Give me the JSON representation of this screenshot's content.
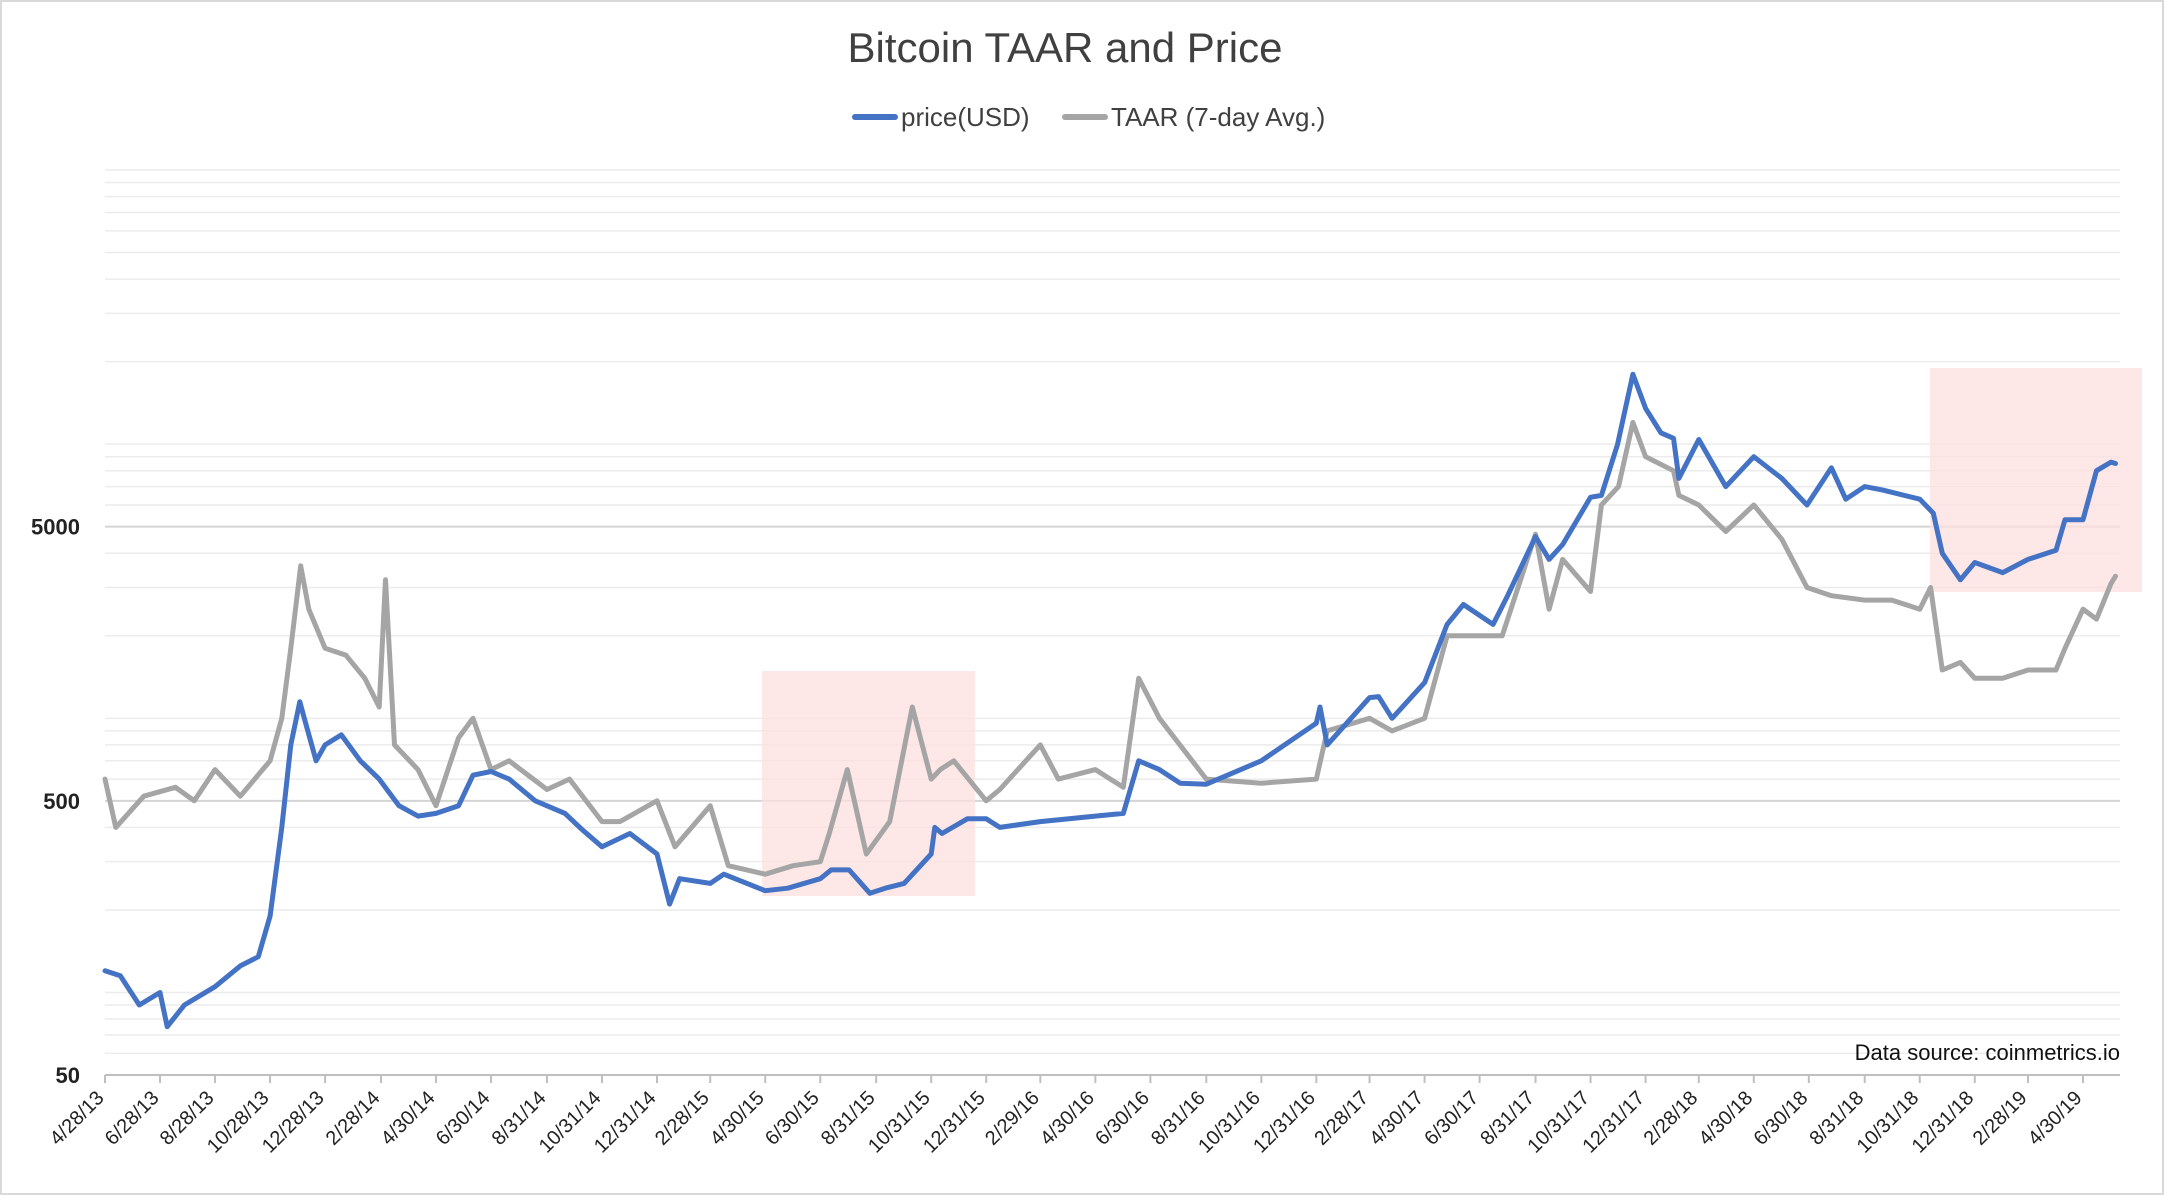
{
  "chart_data": {
    "type": "line",
    "title": "Bitcoin TAAR and Price",
    "annotation": "Data source: coinmetrics.io",
    "yscale": "log",
    "ylim": [
      50,
      100000
    ],
    "y_tick_labels": [
      "50",
      "500",
      "5000"
    ],
    "y_ticks": [
      50,
      500,
      5000
    ],
    "x_tick_labels": [
      "4/28/13",
      "6/28/13",
      "8/28/13",
      "10/28/13",
      "12/28/13",
      "2/28/14",
      "4/30/14",
      "6/30/14",
      "8/31/14",
      "10/31/14",
      "12/31/14",
      "2/28/15",
      "4/30/15",
      "6/30/15",
      "8/31/15",
      "10/31/15",
      "12/31/15",
      "2/29/16",
      "4/30/16",
      "6/30/16",
      "8/31/16",
      "10/31/16",
      "12/31/16",
      "2/28/17",
      "4/30/17",
      "6/30/17",
      "8/31/17",
      "10/31/17",
      "12/31/17",
      "2/28/18",
      "4/30/18",
      "6/30/18",
      "8/31/18",
      "10/31/18",
      "12/31/18",
      "2/28/19",
      "4/30/19"
    ],
    "legend_position": "top-center",
    "grid": true,
    "series": [
      {
        "name": "price(USD)",
        "color": "#4472C4",
        "x": [
          "2013-04-28",
          "2013-05-15",
          "2013-06-05",
          "2013-06-28",
          "2013-07-06",
          "2013-07-25",
          "2013-08-28",
          "2013-09-25",
          "2013-10-15",
          "2013-10-28",
          "2013-11-10",
          "2013-11-20",
          "2013-11-30",
          "2013-12-05",
          "2013-12-18",
          "2013-12-28",
          "2014-01-15",
          "2014-02-05",
          "2014-02-26",
          "2014-03-20",
          "2014-04-10",
          "2014-04-30",
          "2014-05-25",
          "2014-06-10",
          "2014-06-30",
          "2014-07-20",
          "2014-08-18",
          "2014-09-20",
          "2014-10-10",
          "2014-10-31",
          "2014-12-01",
          "2014-12-31",
          "2015-01-14",
          "2015-01-25",
          "2015-02-28",
          "2015-03-15",
          "2015-04-30",
          "2015-05-25",
          "2015-06-30",
          "2015-07-12",
          "2015-08-01",
          "2015-08-24",
          "2015-09-10",
          "2015-10-01",
          "2015-10-31",
          "2015-11-04",
          "2015-11-12",
          "2015-12-10",
          "2015-12-31",
          "2016-01-15",
          "2016-02-29",
          "2016-04-30",
          "2016-05-31",
          "2016-06-17",
          "2016-07-10",
          "2016-08-02",
          "2016-08-31",
          "2016-10-31",
          "2016-12-31",
          "2017-01-04",
          "2017-01-12",
          "2017-02-28",
          "2017-03-10",
          "2017-03-25",
          "2017-04-30",
          "2017-05-25",
          "2017-06-12",
          "2017-07-15",
          "2017-07-31",
          "2017-08-31",
          "2017-09-15",
          "2017-09-30",
          "2017-10-31",
          "2017-11-12",
          "2017-11-30",
          "2017-12-17",
          "2017-12-31",
          "2018-01-17",
          "2018-01-31",
          "2018-02-06",
          "2018-02-28",
          "2018-03-30",
          "2018-04-30",
          "2018-05-31",
          "2018-06-28",
          "2018-07-25",
          "2018-08-10",
          "2018-08-31",
          "2018-09-20",
          "2018-10-31",
          "2018-11-15",
          "2018-11-25",
          "2018-12-15",
          "2018-12-31",
          "2019-01-31",
          "2019-02-28",
          "2019-03-31",
          "2019-04-10",
          "2019-04-30",
          "2019-05-15",
          "2019-05-31",
          "2019-06-05"
        ],
        "values": [
          120,
          115,
          90,
          100,
          75,
          90,
          105,
          125,
          135,
          190,
          400,
          800,
          1150,
          1000,
          700,
          800,
          870,
          700,
          600,
          480,
          440,
          450,
          480,
          620,
          640,
          600,
          500,
          450,
          390,
          340,
          380,
          320,
          210,
          260,
          250,
          270,
          235,
          240,
          260,
          280,
          280,
          230,
          240,
          250,
          320,
          400,
          380,
          430,
          430,
          400,
          420,
          440,
          450,
          700,
          650,
          580,
          575,
          700,
          960,
          1100,
          800,
          1190,
          1200,
          1000,
          1350,
          2200,
          2600,
          2200,
          2800,
          4600,
          3800,
          4300,
          6400,
          6500,
          10000,
          18000,
          13500,
          11000,
          10500,
          7500,
          10400,
          7000,
          9000,
          7500,
          6000,
          8200,
          6300,
          7000,
          6800,
          6300,
          5600,
          4000,
          3200,
          3700,
          3400,
          3800,
          4100,
          5300,
          5300,
          8000,
          8600,
          8500
        ]
      },
      {
        "name": "TAAR (7-day Avg.)",
        "color": "#A5A5A5",
        "x": [
          "2013-04-28",
          "2013-05-10",
          "2013-06-10",
          "2013-07-15",
          "2013-08-05",
          "2013-08-28",
          "2013-09-25",
          "2013-10-28",
          "2013-11-10",
          "2013-11-20",
          "2013-12-01",
          "2013-12-10",
          "2013-12-28",
          "2014-01-20",
          "2014-02-10",
          "2014-02-26",
          "2014-03-05",
          "2014-03-15",
          "2014-04-10",
          "2014-04-30",
          "2014-05-25",
          "2014-06-10",
          "2014-06-30",
          "2014-07-20",
          "2014-08-31",
          "2014-09-25",
          "2014-10-31",
          "2014-11-20",
          "2014-12-31",
          "2015-01-20",
          "2015-02-28",
          "2015-03-20",
          "2015-04-30",
          "2015-05-31",
          "2015-06-30",
          "2015-07-10",
          "2015-07-30",
          "2015-08-20",
          "2015-09-15",
          "2015-10-10",
          "2015-10-31",
          "2015-11-10",
          "2015-11-25",
          "2015-12-31",
          "2016-01-15",
          "2016-02-29",
          "2016-03-20",
          "2016-04-30",
          "2016-05-31",
          "2016-06-17",
          "2016-07-10",
          "2016-08-31",
          "2016-10-31",
          "2016-12-31",
          "2017-01-12",
          "2017-02-28",
          "2017-03-25",
          "2017-04-30",
          "2017-05-25",
          "2017-06-30",
          "2017-07-25",
          "2017-08-31",
          "2017-09-15",
          "2017-09-30",
          "2017-10-31",
          "2017-11-12",
          "2017-12-01",
          "2017-12-17",
          "2017-12-31",
          "2018-01-31",
          "2018-02-06",
          "2018-02-28",
          "2018-03-30",
          "2018-04-30",
          "2018-05-31",
          "2018-06-28",
          "2018-07-25",
          "2018-08-31",
          "2018-09-30",
          "2018-10-31",
          "2018-11-12",
          "2018-11-25",
          "2018-12-15",
          "2018-12-31",
          "2019-01-31",
          "2019-02-28",
          "2019-03-31",
          "2019-04-10",
          "2019-04-30",
          "2019-05-15",
          "2019-05-31",
          "2019-06-05"
        ],
        "values": [
          600,
          400,
          520,
          560,
          500,
          650,
          520,
          700,
          1000,
          1800,
          3600,
          2500,
          1800,
          1700,
          1400,
          1100,
          3200,
          800,
          650,
          480,
          850,
          1000,
          650,
          700,
          550,
          600,
          420,
          420,
          500,
          340,
          480,
          290,
          270,
          290,
          300,
          380,
          650,
          320,
          420,
          1100,
          600,
          650,
          700,
          500,
          550,
          800,
          600,
          650,
          560,
          1400,
          1000,
          600,
          580,
          600,
          900,
          1000,
          900,
          1000,
          2000,
          2000,
          2000,
          4700,
          2500,
          3800,
          2900,
          6000,
          7000,
          12000,
          9000,
          8000,
          6500,
          6000,
          4800,
          6000,
          4500,
          3000,
          2800,
          2700,
          2700,
          2500,
          3000,
          1500,
          1600,
          1400,
          1400,
          1500,
          1500,
          1800,
          2500,
          2300,
          3100,
          3300
        ]
      }
    ]
  }
}
